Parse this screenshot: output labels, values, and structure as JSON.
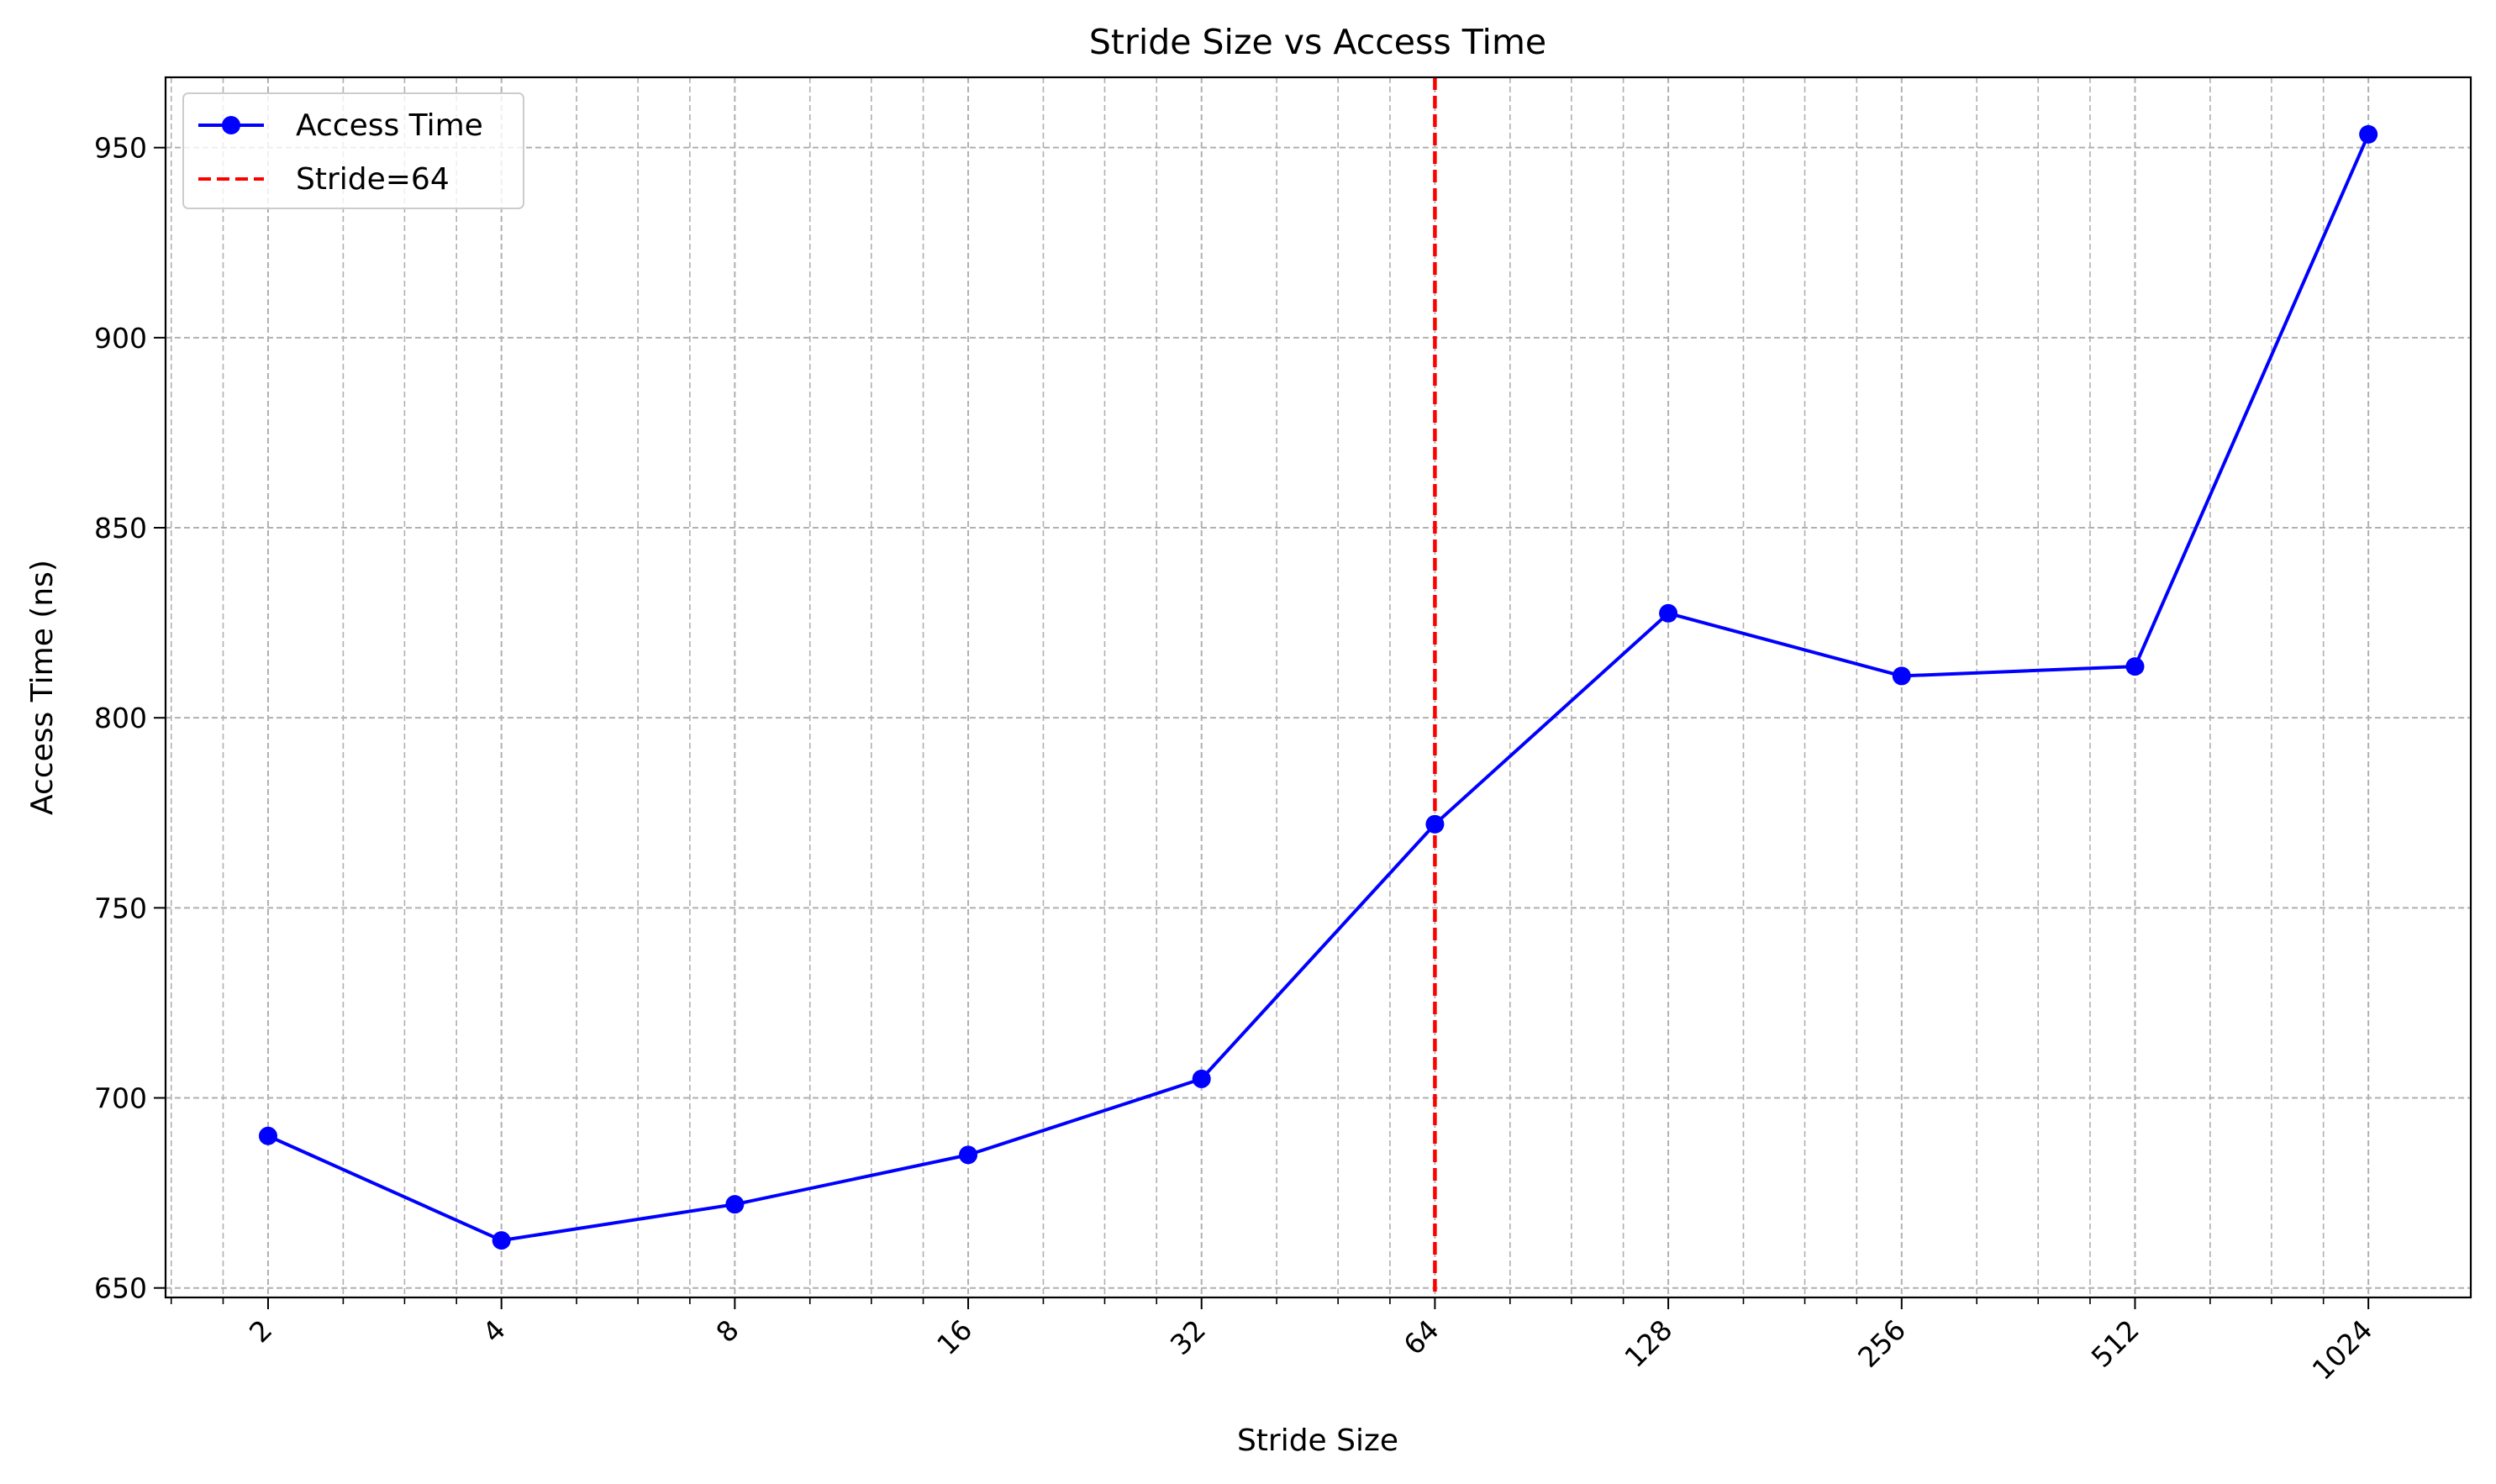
{
  "chart_data": {
    "type": "line",
    "title": "Stride Size vs Access Time",
    "xlabel": "Stride Size",
    "ylabel": "Access Time (ns)",
    "x_scale": "log2",
    "x": [
      2,
      4,
      8,
      16,
      32,
      64,
      128,
      256,
      512,
      1024
    ],
    "x_tick_labels": [
      "2",
      "4",
      "8",
      "16",
      "32",
      "64",
      "128",
      "256",
      "512",
      "1024"
    ],
    "xlim": [
      1.475,
      1388
    ],
    "ylim": [
      647.5,
      968.5
    ],
    "y_ticks": [
      650,
      700,
      750,
      800,
      850,
      900,
      950
    ],
    "grid": true,
    "grid_style": "dashed",
    "legend_position": "upper left",
    "series": [
      {
        "name": "Access Time",
        "color": "#0000ff",
        "marker": "circle",
        "line_style": "solid",
        "values": [
          690,
          662.5,
          672,
          685,
          705,
          772,
          827.5,
          811,
          813.5,
          953.5
        ]
      }
    ],
    "reference_lines": [
      {
        "name": "Stride=64",
        "orientation": "vertical",
        "x": 64,
        "color": "#ff0000",
        "line_style": "dashed"
      }
    ]
  }
}
